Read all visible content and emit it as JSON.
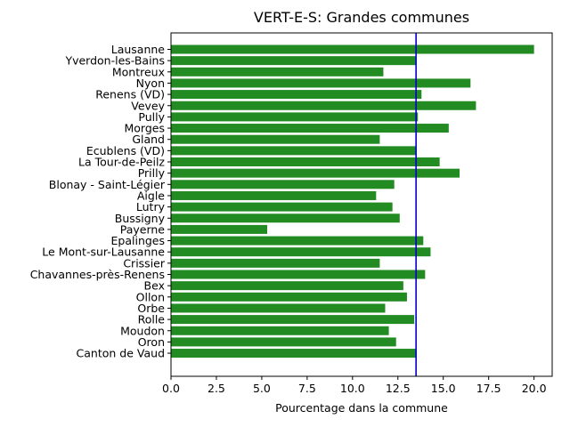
{
  "chart_data": {
    "type": "bar",
    "orientation": "horizontal",
    "title": "VERT-E-S: Grandes communes",
    "xlabel": "Pourcentage dans la commune",
    "ylabel": "",
    "xlim": [
      0,
      21.0
    ],
    "xticks": [
      "0.0",
      "2.5",
      "5.0",
      "7.5",
      "10.0",
      "12.5",
      "15.0",
      "17.5",
      "20.0"
    ],
    "grid": false,
    "bar_color": "#228b22",
    "reference_line": {
      "value": 13.5,
      "color": "#0000cd"
    },
    "categories": [
      "Lausanne",
      "Yverdon-les-Bains",
      "Montreux",
      "Nyon",
      "Renens (VD)",
      "Vevey",
      "Pully",
      "Morges",
      "Gland",
      "Ecublens (VD)",
      "La Tour-de-Peilz",
      "Prilly",
      "Blonay - Saint-Légier",
      "Aigle",
      "Lutry",
      "Bussigny",
      "Payerne",
      "Epalinges",
      "Le Mont-sur-Lausanne",
      "Crissier",
      "Chavannes-près-Renens",
      "Bex",
      "Ollon",
      "Orbe",
      "Rolle",
      "Moudon",
      "Oron",
      "Canton de Vaud"
    ],
    "values": [
      20.0,
      13.5,
      11.7,
      16.5,
      13.8,
      16.8,
      13.6,
      15.3,
      11.5,
      13.5,
      14.8,
      15.9,
      12.3,
      11.3,
      12.2,
      12.6,
      5.3,
      13.9,
      14.3,
      11.5,
      14.0,
      12.8,
      13.0,
      11.8,
      13.4,
      12.0,
      12.4,
      13.5
    ]
  }
}
